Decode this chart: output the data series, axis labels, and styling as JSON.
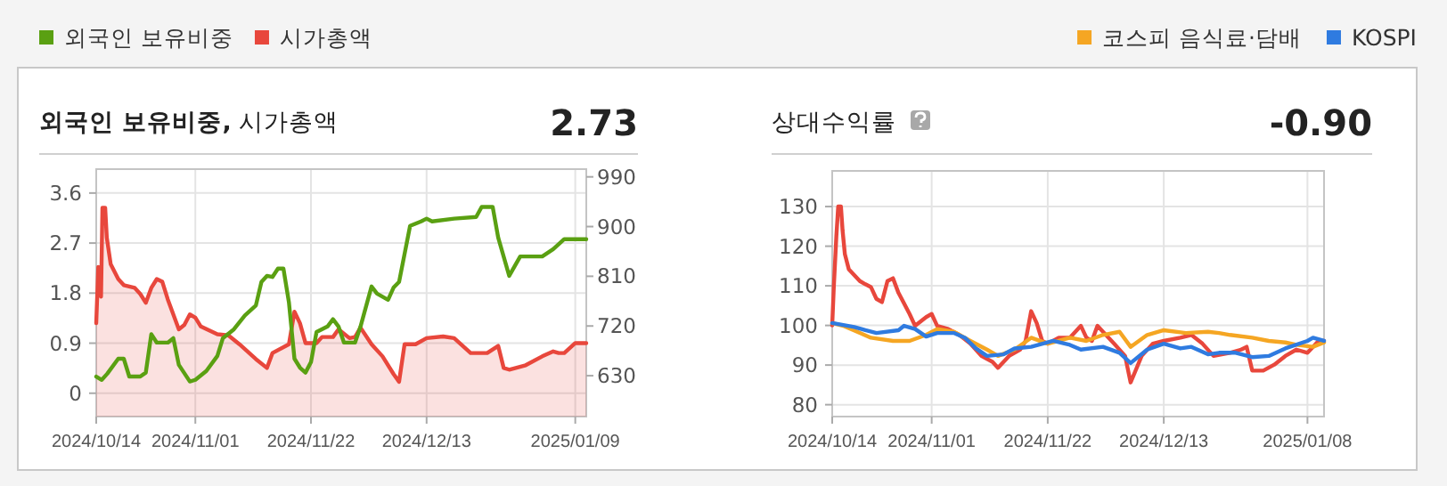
{
  "chart_data": [
    {
      "type": "line",
      "title": "**외국인 보유비중,** 시가총액",
      "annotations": [
        "2.73"
      ],
      "legend": "top left",
      "grid": true,
      "xlim": [
        "2024-10-14",
        "2025-01-11"
      ],
      "xticks": [
        {
          "value": "2024-10-14",
          "label": "2024/10/14"
        },
        {
          "value": "2024-11-01",
          "label": "2024/11/01"
        },
        {
          "value": "2024-11-22",
          "label": "2024/11/22"
        },
        {
          "value": "2024-12-13",
          "label": "2024/12/13"
        },
        {
          "value": "2025-01-09",
          "label": "2025/01/09"
        }
      ],
      "ylim": [
        -0.42,
        4.03
      ],
      "yticks": [
        0,
        0.9,
        1.8,
        2.7,
        3.6
      ],
      "y2lim": [
        556,
        1004
      ],
      "y2ticks": [
        630,
        720,
        810,
        900,
        990
      ],
      "series": [
        {
          "name": "외국인 보유비중",
          "color": "#5aa012",
          "x": [
            "2024-10-14",
            "2024-10-15",
            "2024-10-16",
            "2024-10-18",
            "2024-10-19",
            "2024-10-20",
            "2024-10-22",
            "2024-10-23",
            "2024-10-24",
            "2024-10-25",
            "2024-10-27",
            "2024-10-28",
            "2024-10-29",
            "2024-10-31",
            "2024-11-01",
            "2024-11-03",
            "2024-11-05",
            "2024-11-06",
            "2024-11-08",
            "2024-11-10",
            "2024-11-12",
            "2024-11-13",
            "2024-11-14",
            "2024-11-15",
            "2024-11-16",
            "2024-11-17",
            "2024-11-18",
            "2024-11-19",
            "2024-11-20",
            "2024-11-21",
            "2024-11-22",
            "2024-11-23",
            "2024-11-25",
            "2024-11-26",
            "2024-11-27",
            "2024-11-28",
            "2024-11-30",
            "2024-12-01",
            "2024-12-03",
            "2024-12-04",
            "2024-12-06",
            "2024-12-07",
            "2024-12-08",
            "2024-12-10",
            "2024-12-12",
            "2024-12-13",
            "2024-12-14",
            "2024-12-18",
            "2024-12-22",
            "2024-12-23",
            "2024-12-25",
            "2024-12-26",
            "2024-12-28",
            "2024-12-30",
            "2025-01-03",
            "2025-01-05",
            "2025-01-07",
            "2025-01-09",
            "2025-01-11"
          ],
          "values": [
            0.3,
            0.24,
            0.35,
            0.62,
            0.62,
            0.3,
            0.3,
            0.37,
            1.06,
            0.91,
            0.91,
            0.99,
            0.51,
            0.21,
            0.24,
            0.4,
            0.67,
            0.99,
            1.15,
            1.4,
            1.58,
            2.0,
            2.11,
            2.09,
            2.24,
            2.24,
            1.63,
            0.62,
            0.46,
            0.37,
            0.56,
            1.1,
            1.2,
            1.33,
            1.2,
            0.91,
            0.91,
            1.2,
            1.92,
            1.79,
            1.68,
            1.9,
            2.0,
            3.01,
            3.09,
            3.14,
            3.09,
            3.14,
            3.17,
            3.35,
            3.35,
            2.8,
            2.11,
            2.46,
            2.46,
            2.59,
            2.77,
            2.77,
            2.77
          ]
        },
        {
          "name": "시가총액",
          "type": "area",
          "axis": "y2",
          "color": "#e8473c",
          "x": [
            "2024-10-14",
            "2024-10-14T09:00",
            "2024-10-14T21:00",
            "2024-10-15T03:00",
            "2024-10-15T15:00",
            "2024-10-15T22:00",
            "2024-10-16T15:00",
            "2024-10-18",
            "2024-10-19",
            "2024-10-21",
            "2024-10-22",
            "2024-10-23",
            "2024-10-24",
            "2024-10-25",
            "2024-10-26",
            "2024-10-27",
            "2024-10-29",
            "2024-10-30",
            "2024-10-31",
            "2024-11-01",
            "2024-11-02",
            "2024-11-05",
            "2024-11-07",
            "2024-11-09",
            "2024-11-12",
            "2024-11-14",
            "2024-11-15",
            "2024-11-18",
            "2024-11-19",
            "2024-11-20",
            "2024-11-21",
            "2024-11-23",
            "2024-11-24",
            "2024-11-26",
            "2024-11-27",
            "2024-11-29",
            "2024-11-30",
            "2024-12-01",
            "2024-12-03",
            "2024-12-05",
            "2024-12-07",
            "2024-12-08",
            "2024-12-09",
            "2024-12-11",
            "2024-12-13",
            "2024-12-16",
            "2024-12-18",
            "2024-12-21",
            "2024-12-24",
            "2024-12-26",
            "2024-12-27",
            "2024-12-28",
            "2024-12-31",
            "2025-01-03",
            "2025-01-05",
            "2025-01-06",
            "2025-01-07",
            "2025-01-09",
            "2025-01-11"
          ],
          "values": [
            725,
            827,
            773,
            934,
            934,
            880,
            832,
            805,
            794,
            789,
            778,
            762,
            789,
            805,
            800,
            768,
            714,
            722,
            741,
            735,
            719,
            705,
            703,
            687,
            660,
            644,
            671,
            687,
            746,
            725,
            689,
            689,
            700,
            700,
            714,
            698,
            700,
            717,
            687,
            665,
            633,
            619,
            687,
            687,
            698,
            701,
            698,
            671,
            671,
            684,
            644,
            641,
            649,
            665,
            674,
            671,
            671,
            689,
            689
          ]
        }
      ]
    },
    {
      "type": "line",
      "title": "상대수익률",
      "annotations": [
        "-0.90"
      ],
      "legend": "top right",
      "grid": true,
      "xlim": [
        "2024-10-14",
        "2025-01-11"
      ],
      "xticks": [
        {
          "value": "2024-10-14",
          "label": "2024/10/14"
        },
        {
          "value": "2024-11-01",
          "label": "2024/11/01"
        },
        {
          "value": "2024-11-22",
          "label": "2024/11/22"
        },
        {
          "value": "2024-12-13",
          "label": "2024/12/13"
        },
        {
          "value": "2025-01-08",
          "label": "2025/01/08"
        }
      ],
      "ylim": [
        77,
        139
      ],
      "yticks": [
        80,
        90,
        100,
        110,
        120,
        130
      ],
      "series": [
        {
          "color": "#e8473c",
          "x": [
            "2024-10-14",
            "2024-10-14T07:00",
            "2024-10-14T18:00",
            "2024-10-15T02:00",
            "2024-10-15T14:00",
            "2024-10-15T21:00",
            "2024-10-16T07:00",
            "2024-10-17",
            "2024-10-19",
            "2024-10-20",
            "2024-10-21",
            "2024-10-22",
            "2024-10-23",
            "2024-10-24",
            "2024-10-25",
            "2024-10-26",
            "2024-10-28",
            "2024-10-29",
            "2024-10-31",
            "2024-11-01",
            "2024-11-02",
            "2024-11-04",
            "2024-11-06",
            "2024-11-08",
            "2024-11-10",
            "2024-11-12",
            "2024-11-13",
            "2024-11-15",
            "2024-11-17",
            "2024-11-18",
            "2024-11-19",
            "2024-11-20",
            "2024-11-21",
            "2024-11-22",
            "2024-11-24",
            "2024-11-26",
            "2024-11-28",
            "2024-11-29",
            "2024-11-30",
            "2024-12-01",
            "2024-12-02",
            "2024-12-04",
            "2024-12-06",
            "2024-12-07",
            "2024-12-09",
            "2024-12-11",
            "2024-12-13",
            "2024-12-16",
            "2024-12-18",
            "2024-12-20",
            "2024-12-22",
            "2024-12-25",
            "2024-12-27",
            "2024-12-28",
            "2024-12-29",
            "2024-12-31",
            "2025-01-02",
            "2025-01-04",
            "2025-01-06",
            "2025-01-08",
            "2025-01-09",
            "2025-01-10",
            "2025-01-11"
          ],
          "values": [
            100,
            109.7,
            122.5,
            130,
            130,
            124,
            118,
            114.2,
            111.2,
            110.4,
            109.7,
            106.7,
            105.9,
            111.2,
            111.9,
            108.2,
            102.9,
            99.9,
            102.1,
            102.9,
            99.9,
            99.1,
            97.6,
            95.4,
            92.3,
            90.8,
            89.3,
            92.3,
            93.9,
            96.1,
            103.6,
            100.6,
            96.1,
            95.4,
            96.9,
            96.9,
            99.9,
            96.9,
            96.1,
            99.9,
            98.4,
            95.4,
            92.3,
            85.6,
            92.3,
            95.4,
            96.1,
            96.9,
            97.6,
            95.4,
            92.3,
            93.1,
            93.9,
            94.6,
            88.6,
            88.6,
            90.1,
            92.3,
            93.9,
            93.1,
            94.6,
            96.1,
            96.1
          ]
        },
        {
          "name": "코스피 음식료·담배",
          "color": "#f5a623",
          "x": [
            "2024-10-14",
            "2024-10-16",
            "2024-10-19",
            "2024-10-21",
            "2024-10-25",
            "2024-10-28",
            "2024-10-31",
            "2024-11-02",
            "2024-11-05",
            "2024-11-08",
            "2024-11-11",
            "2024-11-13",
            "2024-11-16",
            "2024-11-19",
            "2024-11-22",
            "2024-11-24",
            "2024-11-26",
            "2024-11-29",
            "2024-12-02",
            "2024-12-05",
            "2024-12-07",
            "2024-12-10",
            "2024-12-13",
            "2024-12-17",
            "2024-12-21",
            "2024-12-23",
            "2024-12-25",
            "2024-12-29",
            "2025-01-01",
            "2025-01-04",
            "2025-01-06",
            "2025-01-09",
            "2025-01-11"
          ],
          "values": [
            100.6,
            99.9,
            98.1,
            96.9,
            96.1,
            96.1,
            97.6,
            99.1,
            98.4,
            96.1,
            93.9,
            92.3,
            93.9,
            96.9,
            95.4,
            96.1,
            96.9,
            96.1,
            97.6,
            98.4,
            94.6,
            97.6,
            98.8,
            98.1,
            98.4,
            98.1,
            97.6,
            96.9,
            96.1,
            95.7,
            95.1,
            94.6,
            95.7
          ]
        },
        {
          "name": "KOSPI",
          "color": "#2f7be0",
          "x": [
            "2024-10-14",
            "2024-10-18",
            "2024-10-20",
            "2024-10-22",
            "2024-10-26",
            "2024-10-27",
            "2024-10-29",
            "2024-10-31",
            "2024-11-02",
            "2024-11-05",
            "2024-11-07",
            "2024-11-09",
            "2024-11-11",
            "2024-11-14",
            "2024-11-16",
            "2024-11-19",
            "2024-11-23",
            "2024-11-26",
            "2024-11-28",
            "2024-12-02",
            "2024-12-05",
            "2024-12-07",
            "2024-12-10",
            "2024-12-13",
            "2024-12-16",
            "2024-12-18",
            "2024-12-21",
            "2024-12-23",
            "2024-12-26",
            "2024-12-29",
            "2025-01-01",
            "2025-01-04",
            "2025-01-08",
            "2025-01-09",
            "2025-01-11"
          ],
          "values": [
            100.6,
            99.6,
            98.8,
            98.1,
            98.8,
            99.9,
            99.1,
            97.2,
            98.1,
            98.1,
            96.9,
            94.2,
            92.3,
            92.7,
            94.2,
            94.6,
            96.1,
            95.1,
            93.9,
            94.6,
            93.1,
            90.5,
            93.9,
            95.4,
            94.2,
            94.6,
            92.7,
            93.1,
            93.1,
            92.0,
            92.3,
            94.2,
            96.1,
            96.9,
            96.1
          ]
        }
      ]
    }
  ]
}
